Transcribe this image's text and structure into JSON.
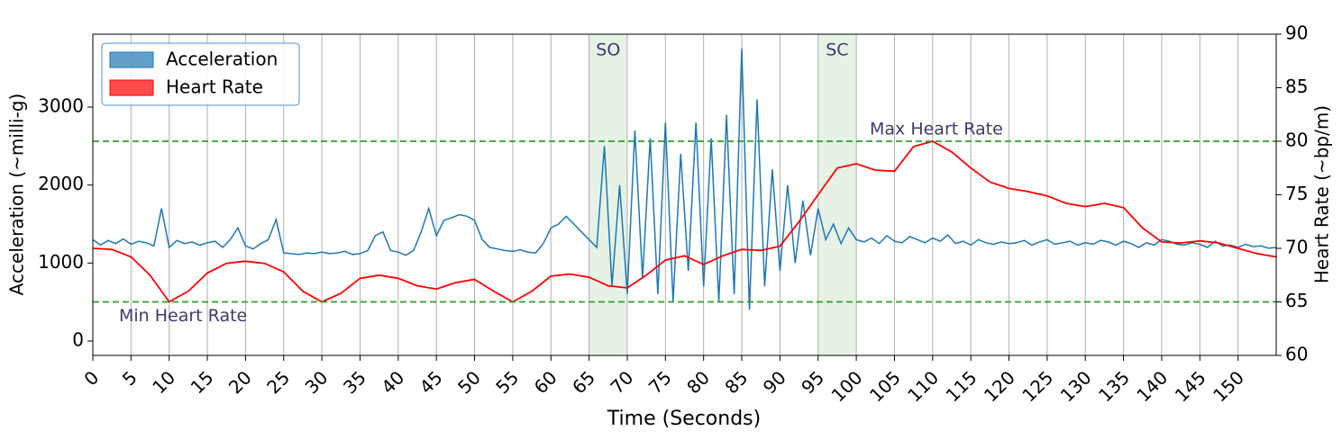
{
  "chart_data": {
    "type": "line",
    "x_label": "Time (Seconds)",
    "y_label": "Acceleration (~milli-g)",
    "y2_label": "Heart Rate (~bp/m)",
    "xlim": [
      0,
      155
    ],
    "ylim": [
      -185,
      3935
    ],
    "y2lim": [
      60,
      90
    ],
    "xticks": [
      0,
      5,
      10,
      15,
      20,
      25,
      30,
      35,
      40,
      45,
      50,
      55,
      60,
      65,
      70,
      75,
      80,
      85,
      90,
      95,
      100,
      105,
      110,
      115,
      120,
      125,
      130,
      135,
      140,
      145,
      150
    ],
    "yticks": [
      0,
      1000,
      2000,
      3000
    ],
    "y2ticks": [
      60,
      65,
      70,
      75,
      80,
      85,
      90
    ],
    "grid": "x",
    "legend": "upper left",
    "spans": [
      {
        "start": 65,
        "end": 70,
        "label": "SO",
        "color": "#d5ead5"
      },
      {
        "start": 95,
        "end": 100,
        "label": "SC",
        "color": "#d5ead5"
      }
    ],
    "hlines": [
      {
        "value": 80,
        "label": "Max Heart Rate",
        "axis": "y2",
        "color": "#2ca02c"
      },
      {
        "value": 65,
        "label": "Min Heart Rate",
        "axis": "y2",
        "color": "#2ca02c"
      }
    ],
    "series": [
      {
        "name": "Acceleration",
        "color": "#1f77b4",
        "x": [
          0,
          1,
          2,
          3,
          4,
          5,
          6,
          7,
          8,
          9,
          10,
          11,
          12,
          13,
          14,
          15,
          16,
          17,
          18,
          19,
          20,
          21,
          22,
          23,
          24,
          25,
          26,
          27,
          28,
          29,
          30,
          31,
          32,
          33,
          34,
          35,
          36,
          37,
          38,
          39,
          40,
          41,
          42,
          43,
          44,
          45,
          46,
          47,
          48,
          49,
          50,
          51,
          52,
          53,
          54,
          55,
          56,
          57,
          58,
          59,
          60,
          61,
          62,
          63,
          64,
          65,
          66,
          67,
          68,
          69,
          70,
          71,
          72,
          73,
          74,
          75,
          76,
          77,
          78,
          79,
          80,
          81,
          82,
          83,
          84,
          85,
          86,
          87,
          88,
          89,
          90,
          91,
          92,
          93,
          94,
          95,
          96,
          97,
          98,
          99,
          100,
          101,
          102,
          103,
          104,
          105,
          106,
          107,
          108,
          109,
          110,
          111,
          112,
          113,
          114,
          115,
          116,
          117,
          118,
          119,
          120,
          121,
          122,
          123,
          124,
          125,
          126,
          127,
          128,
          129,
          130,
          131,
          132,
          133,
          134,
          135,
          136,
          137,
          138,
          139,
          140,
          141,
          142,
          143,
          144,
          145,
          146,
          147,
          148,
          149,
          150,
          151,
          152,
          153,
          154,
          155
        ],
        "values": [
          1300,
          1230,
          1290,
          1250,
          1310,
          1240,
          1280,
          1260,
          1220,
          1700,
          1200,
          1290,
          1250,
          1270,
          1230,
          1260,
          1280,
          1200,
          1300,
          1450,
          1220,
          1180,
          1250,
          1300,
          1560,
          1130,
          1120,
          1110,
          1130,
          1120,
          1140,
          1120,
          1130,
          1150,
          1110,
          1120,
          1160,
          1350,
          1400,
          1160,
          1140,
          1100,
          1160,
          1400,
          1700,
          1350,
          1550,
          1580,
          1620,
          1600,
          1550,
          1300,
          1200,
          1180,
          1160,
          1150,
          1170,
          1140,
          1130,
          1250,
          1450,
          1500,
          1600,
          1500,
          1400,
          1300,
          1200,
          2500,
          700,
          2000,
          600,
          2700,
          800,
          2600,
          600,
          2800,
          500,
          2400,
          900,
          2800,
          700,
          2600,
          500,
          2900,
          600,
          3750,
          400,
          3100,
          700,
          2200,
          900,
          2000,
          1000,
          1800,
          1100,
          1700,
          1300,
          1500,
          1250,
          1450,
          1300,
          1270,
          1320,
          1250,
          1350,
          1280,
          1260,
          1340,
          1300,
          1260,
          1320,
          1280,
          1360,
          1250,
          1280,
          1230,
          1300,
          1260,
          1240,
          1270,
          1250,
          1260,
          1290,
          1230,
          1270,
          1300,
          1240,
          1260,
          1280,
          1230,
          1260,
          1240,
          1290,
          1270,
          1230,
          1280,
          1250,
          1200,
          1260,
          1230,
          1300,
          1280,
          1240,
          1230,
          1260,
          1240,
          1200,
          1280,
          1220,
          1230,
          1200,
          1240,
          1210,
          1220,
          1190,
          1200
        ]
      },
      {
        "name": "Heart Rate",
        "color": "#ff0000",
        "axis": "y2",
        "x": [
          0,
          2.5,
          5,
          7.5,
          10,
          12.5,
          15,
          17.5,
          20,
          22.5,
          25,
          27.5,
          30,
          32.5,
          35,
          37.5,
          40,
          42.5,
          45,
          47.5,
          50,
          52.5,
          55,
          57.5,
          60,
          62.5,
          65,
          67.5,
          70,
          72.5,
          75,
          77.5,
          80,
          82.5,
          85,
          87.5,
          90,
          92.5,
          95,
          97.5,
          100,
          102.5,
          105,
          107.5,
          110,
          112.5,
          115,
          117.5,
          120,
          122.5,
          125,
          127.5,
          130,
          132.5,
          135,
          137.5,
          140,
          142.5,
          145,
          147.5,
          150,
          152.5,
          155
        ],
        "values": [
          70,
          69.9,
          69.2,
          67.5,
          65,
          66,
          67.7,
          68.6,
          68.8,
          68.6,
          67.8,
          66,
          65,
          65.8,
          67.2,
          67.5,
          67.2,
          66.5,
          66.2,
          66.8,
          67.1,
          66,
          65,
          66,
          67.4,
          67.6,
          67.3,
          66.5,
          66.3,
          67.5,
          68.9,
          69.3,
          68.5,
          69.3,
          69.9,
          69.8,
          70.2,
          72.5,
          75,
          77.5,
          77.9,
          77.3,
          77.2,
          79.5,
          80,
          79,
          77.5,
          76.2,
          75.6,
          75.3,
          74.9,
          74.2,
          73.9,
          74.2,
          73.8,
          71.9,
          70.6,
          70.5,
          70.7,
          70.5,
          70,
          69.5,
          69.2
        ]
      }
    ]
  }
}
